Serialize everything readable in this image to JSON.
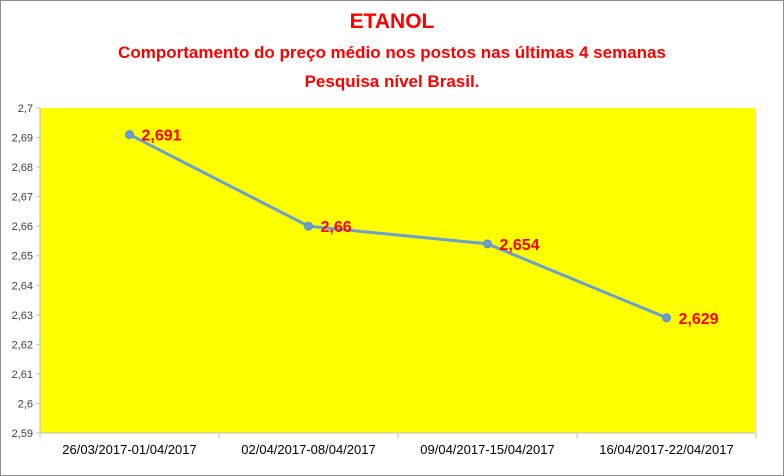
{
  "chart_data": {
    "type": "line",
    "title": "ETANOL",
    "subtitle": "Comportamento do preço médio nos postos nas últimas 4 semanas",
    "subtitle2": "Pesquisa nível Brasil.",
    "categories": [
      "26/03/2017-01/04/2017",
      "02/04/2017-08/04/2017",
      "09/04/2017-15/04/2017",
      "16/04/2017-22/04/2017"
    ],
    "series": [
      {
        "values": [
          2.691,
          2.66,
          2.654,
          2.629
        ],
        "labels": [
          "2,691",
          "2,66",
          "2,654",
          "2,629"
        ]
      }
    ],
    "ylim": [
      2.59,
      2.7
    ],
    "yticks": [
      "2,59",
      "2,6",
      "2,61",
      "2,62",
      "2,63",
      "2,64",
      "2,65",
      "2,66",
      "2,67",
      "2,68",
      "2,69",
      "2,7"
    ],
    "grid": false,
    "legend": "none",
    "colors": {
      "plot_background": "#ffff00",
      "line": "#6a9fd0",
      "title": "#ff0000",
      "data_label": "#ff0000"
    }
  }
}
